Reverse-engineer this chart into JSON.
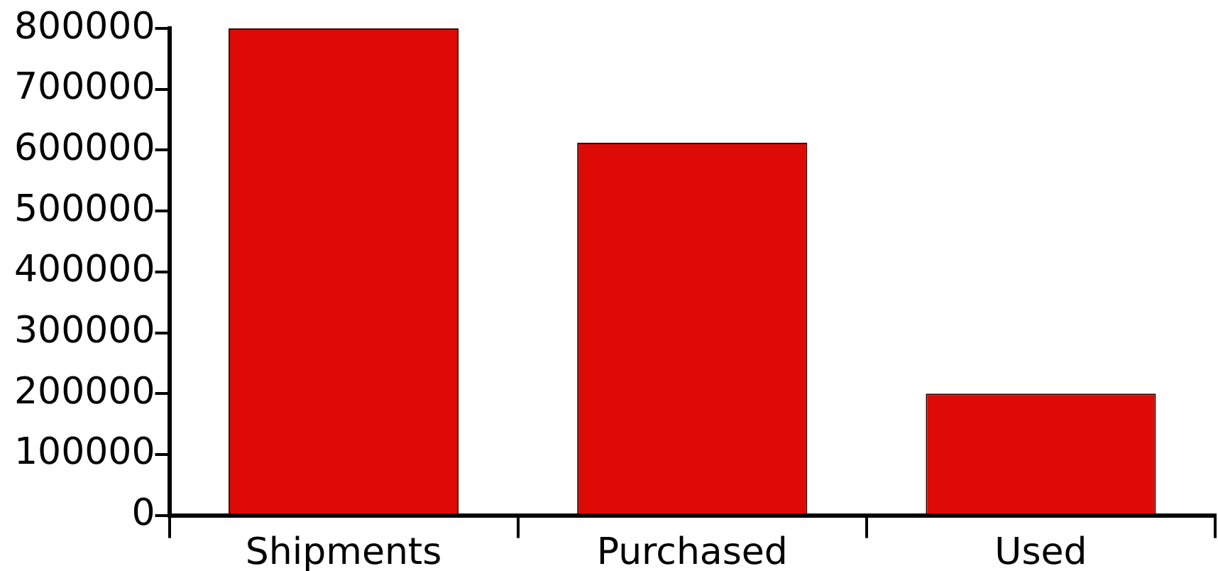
{
  "chart_data": {
    "type": "bar",
    "categories": [
      "Shipments",
      "Purchased",
      "Used"
    ],
    "values": [
      800000,
      612000,
      200000
    ],
    "color": "#dd0a05",
    "ylim": [
      0,
      800000
    ],
    "yticks": [
      0,
      100000,
      200000,
      300000,
      400000,
      500000,
      600000,
      700000,
      800000
    ]
  }
}
